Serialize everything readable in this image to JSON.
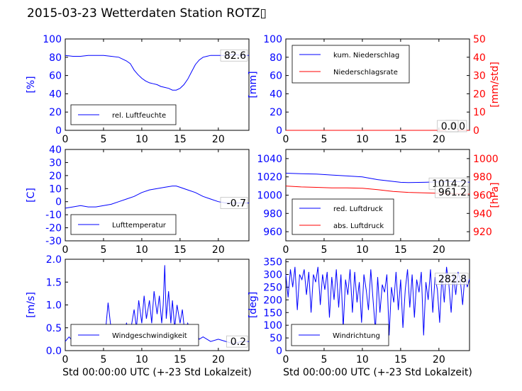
{
  "title": "2015-03-23 Wetterdaten Station ROTZ▯",
  "colors": {
    "primary": "#0000ff",
    "secondary": "#ff0000",
    "frame": "#000000"
  },
  "chart_data": [
    {
      "id": "humidity",
      "type": "line",
      "ylabel": "[%]",
      "xlabel": "",
      "xlim": [
        0,
        24
      ],
      "ylim": [
        0,
        100
      ],
      "xticks": [
        0,
        5,
        10,
        15,
        20
      ],
      "yticks": [
        0,
        20,
        40,
        60,
        80,
        100
      ],
      "legend": "lower-left",
      "value_label": "82.6",
      "series": [
        {
          "name": "rel. Luftfeuchte",
          "color": "#0000ff",
          "x": [
            0,
            1,
            2,
            3,
            4,
            5,
            6,
            7,
            8,
            8.5,
            9,
            9.5,
            10,
            10.5,
            11,
            11.5,
            12,
            12.5,
            13,
            13.5,
            14,
            14.5,
            15,
            15.5,
            16,
            16.5,
            17,
            17.5,
            18,
            18.5,
            19,
            20,
            21,
            22,
            23,
            24
          ],
          "y": [
            82,
            81,
            81,
            82,
            82,
            82,
            81,
            80,
            76,
            73,
            66,
            61,
            57,
            54,
            52,
            51,
            50,
            48,
            47,
            46,
            44,
            44,
            46,
            50,
            56,
            64,
            72,
            77,
            80,
            81,
            82,
            82,
            82,
            83,
            82,
            82
          ]
        }
      ]
    },
    {
      "id": "precip",
      "type": "line",
      "ylabel": "[mm]",
      "ylabel_right": "[mm/std]",
      "xlabel": "",
      "xlim": [
        0,
        24
      ],
      "ylim": [
        0,
        100
      ],
      "ylim_right": [
        0,
        50
      ],
      "xticks": [
        0,
        5,
        10,
        15,
        20
      ],
      "yticks": [
        0,
        20,
        40,
        60,
        80,
        100
      ],
      "yticks_right": [
        0,
        10,
        20,
        30,
        40,
        50
      ],
      "legend": "top-left",
      "value_labels": [
        "0.0",
        "0.0"
      ],
      "series": [
        {
          "name": "kum. Niederschlag",
          "color": "#0000ff",
          "axis": "left",
          "x": [
            0,
            24
          ],
          "y": [
            0,
            0
          ]
        },
        {
          "name": "Niederschlagsrate",
          "color": "#ff0000",
          "axis": "right",
          "x": [
            0,
            24
          ],
          "y": [
            0,
            0
          ]
        }
      ]
    },
    {
      "id": "temperature",
      "type": "line",
      "ylabel": "[C]",
      "xlabel": "",
      "xlim": [
        0,
        24
      ],
      "ylim": [
        -30,
        40
      ],
      "xticks": [
        0,
        5,
        10,
        15,
        20
      ],
      "yticks": [
        -30,
        -20,
        -10,
        0,
        10,
        20,
        30,
        40
      ],
      "legend": "lower-left",
      "value_label": "-0.7",
      "series": [
        {
          "name": "Lufttemperatur",
          "color": "#0000ff",
          "x": [
            0,
            1,
            2,
            3,
            4,
            5,
            6,
            7,
            8,
            9,
            10,
            11,
            12,
            13,
            14,
            14.5,
            15,
            16,
            17,
            18,
            19,
            20,
            21,
            22,
            23,
            24
          ],
          "y": [
            -5,
            -4,
            -3,
            -4,
            -4,
            -3,
            -2,
            0,
            2,
            4,
            7,
            9,
            10,
            11,
            12,
            12,
            11,
            9,
            7,
            4,
            2,
            0,
            -1,
            -1,
            -1,
            -1
          ]
        }
      ]
    },
    {
      "id": "pressure",
      "type": "line",
      "ylabel": "",
      "ylabel_right": "[hPa]",
      "xlabel": "",
      "xlim": [
        0,
        24
      ],
      "ylim": [
        950,
        1050
      ],
      "ylim_right": [
        910,
        1010
      ],
      "xticks": [
        0,
        5,
        10,
        15,
        20
      ],
      "yticks": [
        960,
        980,
        1000,
        1020,
        1040
      ],
      "yticks_right": [
        920,
        940,
        960,
        980,
        1000
      ],
      "legend": "lower-left",
      "value_labels": [
        "1014.2",
        "961.2"
      ],
      "series": [
        {
          "name": "red. Luftdruck",
          "color": "#0000ff",
          "axis": "left",
          "x": [
            0,
            2,
            4,
            6,
            8,
            10,
            12,
            14,
            15,
            16,
            18,
            20,
            22,
            24
          ],
          "y": [
            1024,
            1023.5,
            1023,
            1022,
            1021,
            1020,
            1017,
            1015,
            1014,
            1013.8,
            1014,
            1014.5,
            1015,
            1014.2
          ]
        },
        {
          "name": "abs. Luftdruck",
          "color": "#ff0000",
          "axis": "right",
          "x": [
            0,
            2,
            4,
            6,
            8,
            10,
            12,
            14,
            16,
            18,
            20,
            22,
            24
          ],
          "y": [
            970,
            969,
            968.5,
            968,
            968,
            967.5,
            966,
            964,
            963,
            962.5,
            962,
            961.5,
            961.2
          ]
        }
      ]
    },
    {
      "id": "windspeed",
      "type": "line",
      "ylabel": "[m/s]",
      "xlabel": "Std 00:00:00 UTC (+-23 Std Lokalzeit)",
      "xlim": [
        0,
        24
      ],
      "ylim": [
        0,
        2
      ],
      "xticks": [
        0,
        5,
        10,
        15,
        20
      ],
      "yticks": [
        0.0,
        0.5,
        1.0,
        1.5,
        2.0
      ],
      "legend": "lower-left",
      "value_label": "0.2",
      "series": [
        {
          "name": "Windgeschwindigkeit",
          "color": "#0000ff",
          "x": [
            0,
            0.5,
            1,
            1.5,
            2,
            2.5,
            3,
            3.5,
            4,
            4.5,
            5,
            5.3,
            5.6,
            5.9,
            6.2,
            6.5,
            7,
            7.5,
            8,
            8.5,
            9,
            9.3,
            9.6,
            10,
            10.3,
            10.6,
            11,
            11.3,
            11.6,
            12,
            12.3,
            12.6,
            12.8,
            13,
            13.2,
            13.5,
            13.8,
            14,
            14.3,
            14.6,
            15,
            15.3,
            15.6,
            16,
            16.5,
            17,
            17.5,
            18,
            19,
            20,
            21,
            22,
            23,
            24
          ],
          "y": [
            0.2,
            0.3,
            0.2,
            0.25,
            0.2,
            0.3,
            0.4,
            0.2,
            0.35,
            0.25,
            0.3,
            0.5,
            1.05,
            0.6,
            0.3,
            0.4,
            0.5,
            0.3,
            0.6,
            0.4,
            0.9,
            0.5,
            1.1,
            0.6,
            1.2,
            0.7,
            1.1,
            0.6,
            1.3,
            0.8,
            1.2,
            0.6,
            1.0,
            1.87,
            0.7,
            1.3,
            0.6,
            1.1,
            0.5,
            1.0,
            0.6,
            0.9,
            0.4,
            0.6,
            0.3,
            0.4,
            0.25,
            0.3,
            0.2,
            0.25,
            0.2,
            0.15,
            0.2,
            0.2
          ]
        }
      ]
    },
    {
      "id": "winddir",
      "type": "line",
      "ylabel": "[deg]",
      "xlabel": "Std 00:00:00 UTC (+-23 Std Lokalzeit)",
      "xlim": [
        0,
        24
      ],
      "ylim": [
        0,
        360
      ],
      "xticks": [
        0,
        5,
        10,
        15,
        20
      ],
      "yticks": [
        0,
        50,
        100,
        150,
        200,
        250,
        300,
        350
      ],
      "legend": "lower-left",
      "value_label": "282.8",
      "series": [
        {
          "name": "Windrichtung",
          "color": "#0000ff",
          "x": [
            0,
            0.3,
            0.6,
            0.9,
            1.2,
            1.5,
            1.8,
            2.1,
            2.4,
            2.7,
            3,
            3.3,
            3.6,
            3.9,
            4.2,
            4.5,
            4.8,
            5.1,
            5.4,
            5.7,
            6,
            6.3,
            6.6,
            6.9,
            7.2,
            7.5,
            7.8,
            8.1,
            8.4,
            8.7,
            9,
            9.3,
            9.6,
            9.9,
            10.2,
            10.5,
            10.8,
            11.1,
            11.4,
            11.7,
            12,
            12.3,
            12.6,
            12.9,
            13.2,
            13.5,
            13.8,
            14.1,
            14.4,
            14.7,
            15,
            15.3,
            15.6,
            15.9,
            16.2,
            16.5,
            16.8,
            17.1,
            17.4,
            17.7,
            18,
            18.3,
            18.6,
            18.9,
            19.2,
            19.5,
            19.8,
            20.1,
            20.4,
            20.7,
            21,
            21.3,
            21.6,
            21.9,
            22.2,
            22.5,
            22.8,
            23.1,
            23.4,
            23.7,
            24
          ],
          "y": [
            300,
            210,
            320,
            250,
            330,
            160,
            300,
            280,
            320,
            220,
            310,
            150,
            300,
            270,
            330,
            180,
            300,
            240,
            310,
            130,
            290,
            200,
            320,
            170,
            300,
            90,
            280,
            220,
            320,
            150,
            310,
            190,
            270,
            110,
            300,
            240,
            160,
            320,
            200,
            80,
            290,
            150,
            260,
            230,
            300,
            60,
            250,
            190,
            310,
            160,
            280,
            90,
            240,
            320,
            170,
            300,
            130,
            280,
            230,
            310,
            60,
            270,
            200,
            320,
            150,
            290,
            240,
            110,
            300,
            190,
            330,
            260,
            150,
            300,
            220,
            310,
            280,
            180,
            300,
            250,
            282.8
          ]
        }
      ]
    }
  ]
}
